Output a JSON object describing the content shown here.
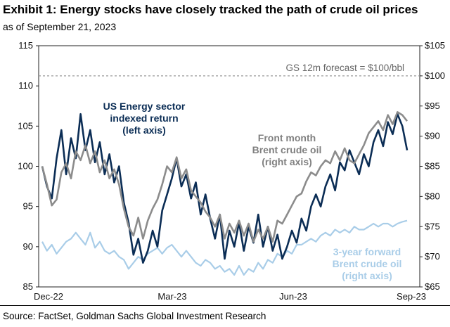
{
  "title": "Exhibit 1: Energy stocks have closely tracked the path of crude oil prices",
  "subtitle": "as of September 21, 2023",
  "source": "Source: FactSet, Goldman Sachs Global Investment Research",
  "chart_data": {
    "type": "line",
    "x_ticks": [
      "Dec-22",
      "Mar-23",
      "Jun-23",
      "Sep-23"
    ],
    "left_axis": {
      "range": [
        85,
        115
      ],
      "ticks": [
        "85",
        "90",
        "95",
        "100",
        "105",
        "110",
        "115"
      ]
    },
    "right_axis": {
      "range": [
        65,
        105
      ],
      "ticks": [
        "$65",
        "$70",
        "$75",
        "$80",
        "$85",
        "$90",
        "$95",
        "$100",
        "$105"
      ]
    },
    "forecast_line": {
      "value": 100,
      "axis": "right",
      "label": "GS 12m forecast = $100/bbl"
    },
    "annotations": {
      "energy": [
        "US Energy sector",
        "indexed return",
        "(left axis)"
      ],
      "brent_front": [
        "Front month",
        "Brent crude oil",
        "(right axis)"
      ],
      "brent_3y": [
        "3-year forward",
        "Brent crude oil",
        "(right axis)"
      ]
    },
    "colors": {
      "energy": "#0b2d55",
      "brent_front": "#8c8c8c",
      "brent_3y": "#a9cde8"
    },
    "series": [
      {
        "name": "US Energy sector indexed return",
        "axis": "left",
        "values": [
          100.0,
          97.5,
          96.0,
          101.0,
          104.5,
          99.0,
          103.5,
          101.0,
          106.5,
          102.0,
          104.5,
          100.5,
          103.0,
          99.0,
          101.5,
          98.0,
          100.0,
          95.5,
          93.0,
          89.0,
          91.0,
          88.0,
          89.5,
          92.0,
          90.0,
          94.5,
          96.5,
          98.5,
          101.0,
          97.5,
          99.0,
          96.0,
          98.0,
          94.0,
          96.5,
          93.5,
          91.0,
          94.0,
          88.5,
          92.0,
          90.0,
          93.0,
          89.5,
          92.5,
          90.5,
          94.0,
          90.0,
          92.5,
          89.5,
          91.5,
          88.5,
          90.0,
          92.0,
          90.5,
          93.5,
          92.0,
          95.0,
          96.5,
          95.0,
          97.5,
          99.0,
          97.0,
          100.5,
          99.5,
          102.0,
          100.5,
          99.0,
          101.5,
          100.0,
          103.0,
          104.5,
          102.5,
          105.5,
          104.0,
          106.5,
          105.0,
          102.0
        ],
        "start": "2022-12-01",
        "end": "2023-09-21"
      },
      {
        "name": "Front month Brent crude oil",
        "axis": "right",
        "values": [
          85.0,
          82.0,
          78.5,
          79.5,
          84.0,
          85.5,
          83.0,
          87.5,
          86.0,
          88.5,
          85.5,
          87.5,
          84.0,
          86.0,
          83.0,
          84.5,
          82.0,
          78.0,
          75.0,
          73.5,
          76.5,
          73.0,
          76.0,
          78.0,
          79.5,
          82.0,
          85.0,
          84.0,
          86.5,
          83.0,
          84.5,
          81.0,
          80.0,
          79.0,
          77.5,
          76.5,
          75.0,
          77.0,
          73.0,
          75.5,
          74.0,
          76.0,
          73.5,
          75.5,
          72.5,
          74.5,
          73.0,
          75.0,
          72.5,
          76.0,
          75.5,
          77.0,
          78.5,
          80.0,
          80.5,
          82.5,
          84.0,
          83.5,
          85.0,
          86.0,
          85.5,
          87.5,
          86.0,
          88.0,
          86.0,
          85.5,
          87.0,
          88.5,
          90.5,
          91.5,
          92.5,
          91.0,
          93.5,
          92.0,
          94.0,
          93.5,
          92.5
        ],
        "start": "2022-12-01",
        "end": "2023-09-21"
      },
      {
        "name": "3-year forward Brent crude oil",
        "axis": "right",
        "values": [
          72.5,
          71.0,
          72.0,
          70.5,
          71.5,
          72.5,
          73.0,
          74.0,
          73.0,
          72.0,
          74.0,
          71.5,
          72.5,
          71.0,
          70.5,
          71.0,
          70.0,
          69.5,
          68.0,
          69.0,
          70.0,
          69.5,
          70.5,
          71.0,
          71.5,
          70.5,
          71.5,
          72.0,
          71.0,
          70.0,
          71.0,
          70.0,
          69.0,
          68.5,
          69.5,
          69.0,
          68.0,
          68.5,
          67.5,
          68.0,
          67.0,
          68.5,
          67.0,
          68.0,
          67.5,
          69.0,
          68.0,
          69.5,
          69.0,
          70.5,
          70.0,
          71.0,
          70.5,
          72.0,
          72.0,
          72.5,
          73.0,
          72.5,
          73.5,
          74.0,
          73.5,
          74.5,
          74.0,
          74.5,
          74.0,
          75.0,
          74.5,
          74.5,
          75.0,
          75.5,
          75.0,
          75.5,
          75.5,
          75.0,
          75.5,
          75.8,
          76.0
        ],
        "start": "2022-12-01",
        "end": "2023-09-21"
      }
    ]
  }
}
